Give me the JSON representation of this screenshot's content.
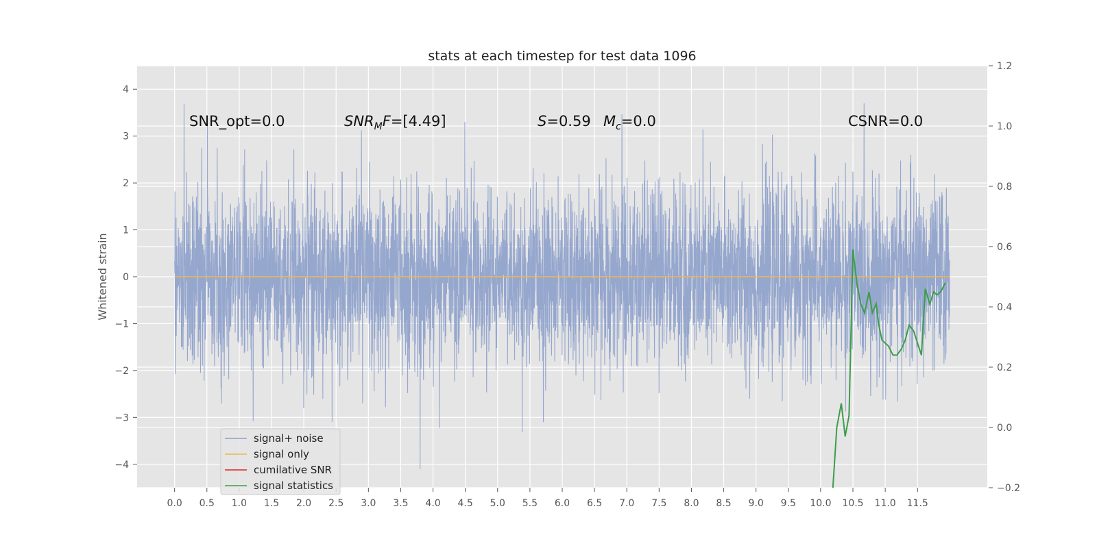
{
  "chart_data": {
    "type": "line",
    "title": "stats at each timestep for test data 1096",
    "ylabel": "Whitened strain",
    "xlabel": "",
    "xlim": [
      -0.58,
      12.58
    ],
    "ylim_left": [
      -4.5,
      4.5
    ],
    "ylim_right": [
      -0.2,
      1.2
    ],
    "x_ticks": [
      "0.0",
      "0.5",
      "1.0",
      "1.5",
      "2.0",
      "2.5",
      "3.0",
      "3.5",
      "4.0",
      "4.5",
      "5.0",
      "5.5",
      "6.0",
      "6.5",
      "7.0",
      "7.5",
      "8.0",
      "8.5",
      "9.0",
      "9.5",
      "10.0",
      "10.5",
      "11.0",
      "11.5"
    ],
    "y_ticks_left": [
      "4",
      "3",
      "2",
      "1",
      "0",
      "−1",
      "−2",
      "−3",
      "−4"
    ],
    "y_ticks_right": [
      "1.2",
      "1.0",
      "0.8",
      "0.6",
      "0.4",
      "0.2",
      "0.0",
      "−0.2"
    ],
    "grid": true,
    "legend_position": "lower-left",
    "legend": [
      {
        "label": "signal+ noise",
        "color": "#8da0cb"
      },
      {
        "label": "signal only",
        "color": "#f0b550"
      },
      {
        "label": "cumilative SNR",
        "color": "#d62728"
      },
      {
        "label": "signal statistics",
        "color": "#3d9c4a"
      }
    ],
    "annotations": {
      "snr_opt": "SNR_opt=0.0",
      "snr_mf_main": "SNR",
      "snr_mf_sub": "M",
      "snr_mf_it": "F",
      "snr_mf_val": "=[4.49]",
      "s_sym": "S",
      "s_val": "=0.59",
      "mc_sym": "M",
      "mc_sub": "c",
      "mc_val": "=0.0",
      "csnr": "CSNR=0.0"
    },
    "series": [
      {
        "name": "signal+ noise",
        "axis": "left",
        "description_range": [
          0.0,
          12.0
        ],
        "envelope": {
          "typical_min": -2.0,
          "typical_max": 2.0,
          "peak_max": 3.7,
          "peak_min": -4.1
        },
        "seed": 1096
      },
      {
        "name": "signal only",
        "axis": "left",
        "x": [
          0.0,
          12.0
        ],
        "y": [
          0.0,
          0.0
        ]
      },
      {
        "name": "cumilative SNR",
        "axis": "right",
        "x": [],
        "y": []
      },
      {
        "name": "signal statistics",
        "axis": "right",
        "x": [
          10.19,
          10.25,
          10.32,
          10.38,
          10.44,
          10.5,
          10.56,
          10.62,
          10.68,
          10.75,
          10.8,
          10.86,
          10.9,
          10.95,
          11.0,
          11.05,
          11.12,
          11.18,
          11.25,
          11.31,
          11.37,
          11.44,
          11.5,
          11.56,
          11.62,
          11.69,
          11.75,
          11.8,
          11.86,
          11.93
        ],
        "y": [
          -0.2,
          0.0,
          0.08,
          -0.03,
          0.04,
          0.59,
          0.48,
          0.41,
          0.38,
          0.45,
          0.38,
          0.41,
          0.34,
          0.29,
          0.28,
          0.27,
          0.24,
          0.24,
          0.26,
          0.29,
          0.34,
          0.32,
          0.28,
          0.24,
          0.46,
          0.41,
          0.45,
          0.44,
          0.45,
          0.48
        ]
      }
    ]
  }
}
